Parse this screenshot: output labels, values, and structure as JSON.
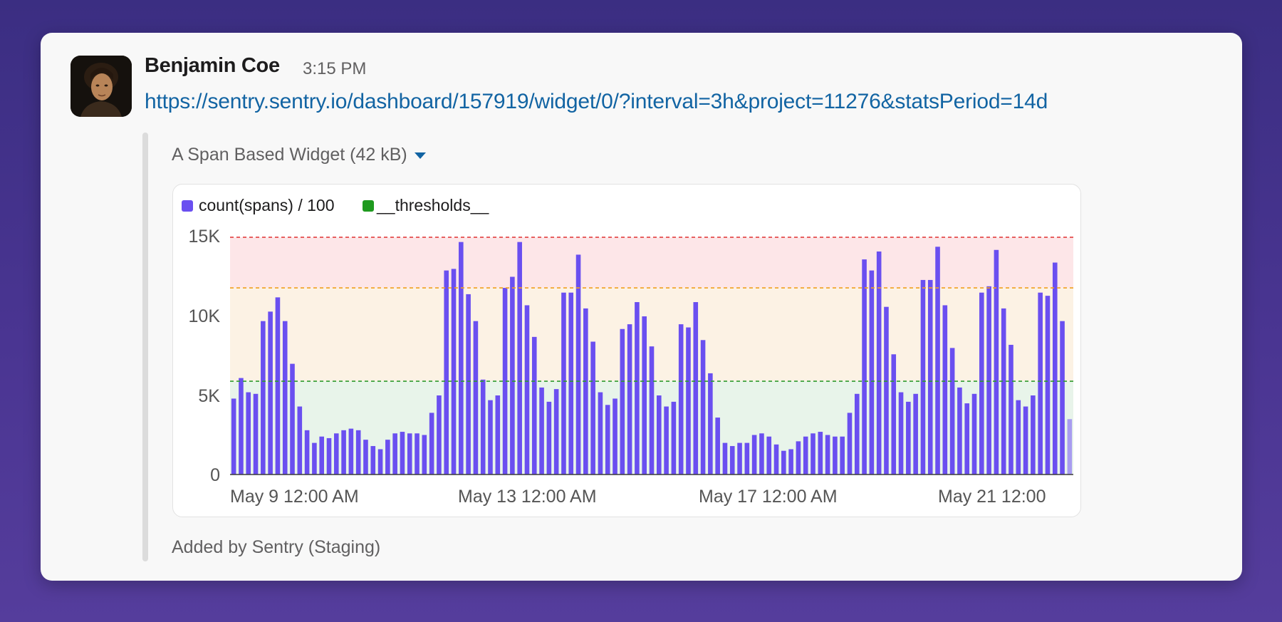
{
  "message": {
    "sender": "Benjamin Coe",
    "time": "3:15 PM",
    "link": "https://sentry.sentry.io/dashboard/157919/widget/0/?interval=3h&project=11276&statsPeriod=14d",
    "avatar_icon": "person-photo-icon"
  },
  "attachment": {
    "title": "A Span Based Widget (42 kB)",
    "expand_icon": "caret-down-icon",
    "footer": "Added by Sentry (Staging)"
  },
  "chart_data": {
    "type": "bar",
    "legend": [
      {
        "name": "count(spans) / 100",
        "color": "#6a4ff0"
      },
      {
        "name": "__thresholds__",
        "color": "#1f9a1f"
      }
    ],
    "y_ticks": [
      "15K",
      "10K",
      "5K",
      "0"
    ],
    "y_tick_values": [
      15000,
      10000,
      5000,
      0
    ],
    "x_labels": [
      "May 9 12:00 AM",
      "May 13 12:00 AM",
      "May 17 12:00 AM",
      "May 21 12:00"
    ],
    "ylim": [
      0,
      15000
    ],
    "bar_color": "#6a4ff0",
    "last_bar_color": "#a89cf0",
    "thresholds": [
      {
        "value": 15000,
        "color": "#e03030",
        "band_color": "#fde6e8"
      },
      {
        "value": 11800,
        "color": "#f0a020",
        "band_color": "#fcf2e4"
      },
      {
        "value": 5900,
        "color": "#2e9a2e",
        "band_color": "#e8f4ea"
      }
    ],
    "values": [
      4800,
      6100,
      5200,
      5100,
      9700,
      10300,
      11200,
      9700,
      7000,
      4300,
      2800,
      2000,
      2400,
      2300,
      2600,
      2800,
      2900,
      2800,
      2200,
      1800,
      1600,
      2200,
      2600,
      2700,
      2600,
      2600,
      2500,
      3900,
      5000,
      12900,
      13000,
      14700,
      11400,
      9700,
      6000,
      4700,
      5000,
      11800,
      12500,
      14700,
      10700,
      8700,
      5500,
      4600,
      5400,
      11500,
      11500,
      13900,
      10500,
      8400,
      5200,
      4400,
      4800,
      9200,
      9500,
      10900,
      10000,
      8100,
      5000,
      4300,
      4600,
      9500,
      9300,
      10900,
      8500,
      6400,
      3600,
      2000,
      1800,
      2000,
      2000,
      2500,
      2600,
      2400,
      1900,
      1500,
      1600,
      2100,
      2400,
      2600,
      2700,
      2500,
      2400,
      2400,
      3900,
      5100,
      13600,
      12900,
      14100,
      10600,
      7600,
      5200,
      4600,
      5100,
      12300,
      12300,
      14400,
      10700,
      8000,
      5500,
      4500,
      5100,
      11500,
      11900,
      14200,
      10500,
      8200,
      4700,
      4300,
      5000,
      11500,
      11300,
      13400,
      9700,
      3500
    ]
  }
}
